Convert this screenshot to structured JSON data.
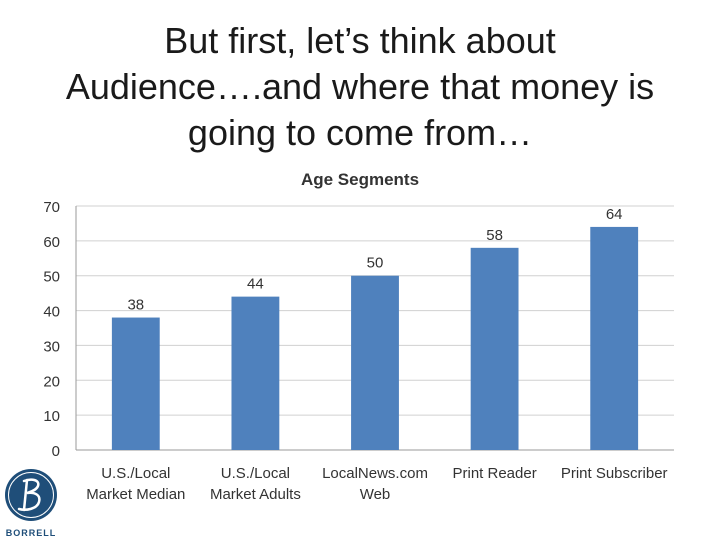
{
  "slide": {
    "title_lines": [
      "But first, let’s think about",
      "Audience….and where that money is",
      "going to come from…"
    ]
  },
  "logo": {
    "text": "BORRELL",
    "color": "#1f4e79"
  },
  "chart_data": {
    "type": "bar",
    "title": "Age Segments",
    "categories": [
      [
        "U.S./Local",
        "Market Median"
      ],
      [
        "U.S./Local",
        "Market Adults"
      ],
      [
        "LocalNews.com",
        "Web"
      ],
      [
        "Print Reader"
      ],
      [
        "Print Subscriber"
      ]
    ],
    "values": [
      38,
      44,
      50,
      58,
      64
    ],
    "ylim": [
      0,
      70
    ],
    "yticks": [
      0,
      10,
      20,
      30,
      40,
      50,
      60,
      70
    ],
    "grid": true,
    "legend": "none",
    "bar_color": "#4f81bd"
  }
}
